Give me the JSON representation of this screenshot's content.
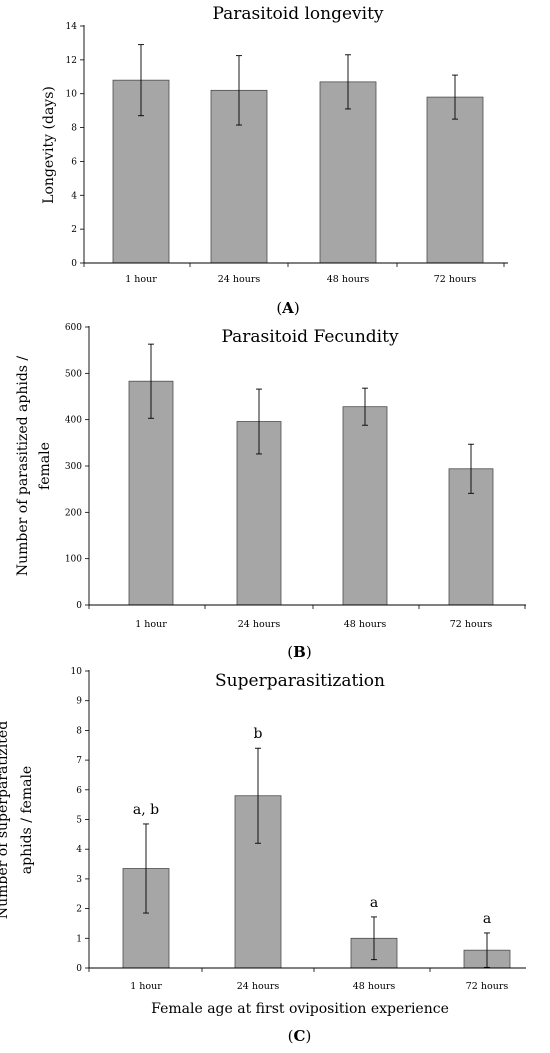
{
  "chart_data": [
    {
      "type": "bar",
      "title": "Parasitoid longevity",
      "ylabel": "Longevity (days)",
      "xlabel": "",
      "categories": [
        "1 hour",
        "24 hours",
        "48 hours",
        "72 hours"
      ],
      "values": [
        10.8,
        10.2,
        10.7,
        9.8
      ],
      "errors": [
        2.1,
        2.05,
        1.6,
        1.3
      ],
      "ylim": [
        0,
        14
      ],
      "yticks": [
        "0",
        "2",
        "4",
        "6",
        "8",
        "10",
        "12",
        "14"
      ],
      "annotations": [],
      "panel": {
        "open": "(",
        "letter": "A",
        "close": ")"
      }
    },
    {
      "type": "bar",
      "title": "Parasitoid Fecundity",
      "ylabel": "Number of parasitized aphids / female",
      "ylabel_lines": [
        "Number of parasitized aphids /",
        "female"
      ],
      "xlabel": "",
      "categories": [
        "1 hour",
        "24 hours",
        "48 hours",
        "72 hours"
      ],
      "values": [
        483,
        396,
        428,
        294
      ],
      "errors": [
        80,
        70,
        40,
        53
      ],
      "ylim": [
        0,
        600
      ],
      "yticks": [
        "0",
        "100",
        "200",
        "300",
        "400",
        "500",
        "600"
      ],
      "annotations": [],
      "panel": {
        "open": "(",
        "letter": "B",
        "close": ")"
      }
    },
    {
      "type": "bar",
      "title": "Superparasitization",
      "ylabel": "Number of superparatizited aphids / female",
      "ylabel_lines": [
        "Number of superparatizited",
        "aphids / female"
      ],
      "xlabel": "Female age at first oviposition experience",
      "categories": [
        "1 hour",
        "24 hours",
        "48 hours",
        "72 hours"
      ],
      "values": [
        3.35,
        5.8,
        1.0,
        0.6
      ],
      "errors": [
        1.5,
        1.6,
        0.72,
        0.58
      ],
      "ylim": [
        0,
        10
      ],
      "yticks": [
        "0",
        "1",
        "2",
        "3",
        "4",
        "5",
        "6",
        "7",
        "8",
        "9",
        "10"
      ],
      "annotations": [
        "a, b",
        "b",
        "a",
        "a"
      ],
      "panel": {
        "open": "(",
        "letter": "C",
        "close": ")"
      }
    }
  ],
  "style": {
    "bar_color": "#a6a6a6",
    "bar_edge": "#4d4d4d",
    "axis_color": "#000000"
  }
}
